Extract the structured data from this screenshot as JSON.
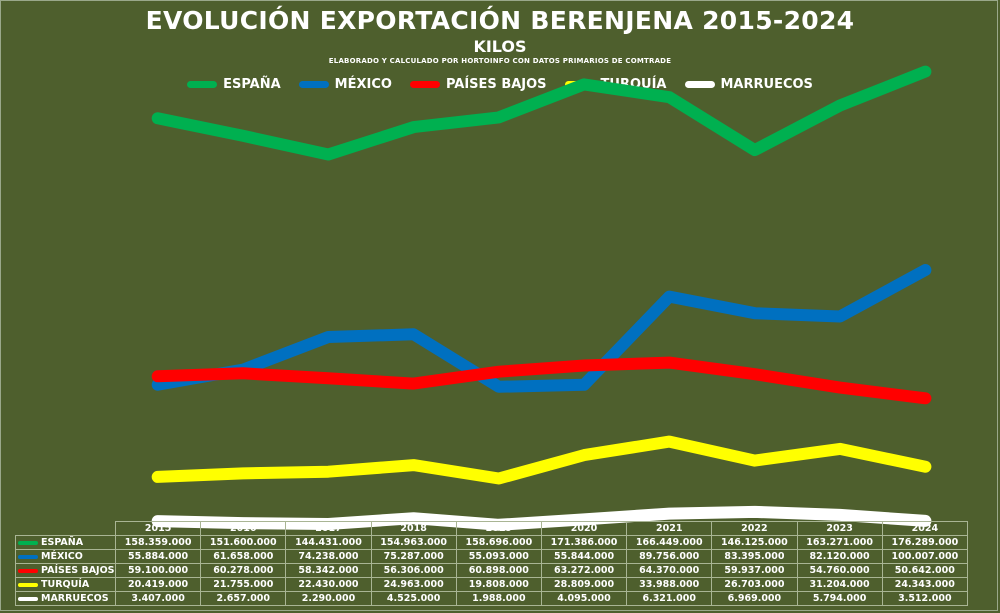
{
  "chart_data": {
    "type": "line",
    "title": "EVOLUCIÓN EXPORTACIÓN BERENJENA 2015-2024",
    "subtitle": "KILOS",
    "source": "ELABORADO Y CALCULADO POR HORTOINFO CON DATOS PRIMARIOS DE COMTRADE",
    "categories": [
      "2015",
      "2016",
      "2017",
      "2018",
      "2019",
      "2020",
      "2021",
      "2022",
      "2023",
      "2024"
    ],
    "legend_position": "top",
    "grid": false,
    "ylim": [
      0,
      200000000
    ],
    "series": [
      {
        "name": "ESPAÑA",
        "color": "#00b050",
        "values": [
          158359000,
          151600000,
          144431000,
          154963000,
          158696000,
          171386000,
          166449000,
          146125000,
          163271000,
          176289000
        ],
        "labels": [
          "158.359.000",
          "151.600.000",
          "144.431.000",
          "154.963.000",
          "158.696.000",
          "171.386.000",
          "166.449.000",
          "146.125.000",
          "163.271.000",
          "176.289.000"
        ]
      },
      {
        "name": "MÉXICO",
        "color": "#0070c0",
        "values": [
          55884000,
          61658000,
          74238000,
          75287000,
          55093000,
          55844000,
          89756000,
          83395000,
          82120000,
          100007000
        ],
        "labels": [
          "55.884.000",
          "61.658.000",
          "74.238.000",
          "75.287.000",
          "55.093.000",
          "55.844.000",
          "89.756.000",
          "83.395.000",
          "82.120.000",
          "100.007.000"
        ]
      },
      {
        "name": "PAÍSES BAJOS",
        "color": "#ff0000",
        "values": [
          59100000,
          60278000,
          58342000,
          56306000,
          60898000,
          63272000,
          64370000,
          59937000,
          54760000,
          50642000
        ],
        "labels": [
          "59.100.000",
          "60.278.000",
          "58.342.000",
          "56.306.000",
          "60.898.000",
          "63.272.000",
          "64.370.000",
          "59.937.000",
          "54.760.000",
          "50.642.000"
        ]
      },
      {
        "name": "TURQUÍA",
        "color": "#ffff00",
        "values": [
          20419000,
          21755000,
          22430000,
          24963000,
          19808000,
          28809000,
          33988000,
          26703000,
          31204000,
          24343000
        ],
        "labels": [
          "20.419.000",
          "21.755.000",
          "22.430.000",
          "24.963.000",
          "19.808.000",
          "28.809.000",
          "33.988.000",
          "26.703.000",
          "31.204.000",
          "24.343.000"
        ]
      },
      {
        "name": "MARRUECOS",
        "color": "#ffffff",
        "values": [
          3407000,
          2657000,
          2290000,
          4525000,
          1988000,
          4095000,
          6321000,
          6969000,
          5794000,
          3512000
        ],
        "labels": [
          "3.407.000",
          "2.657.000",
          "2.290.000",
          "4.525.000",
          "1.988.000",
          "4.095.000",
          "6.321.000",
          "6.969.000",
          "5.794.000",
          "3.512.000"
        ]
      }
    ]
  }
}
